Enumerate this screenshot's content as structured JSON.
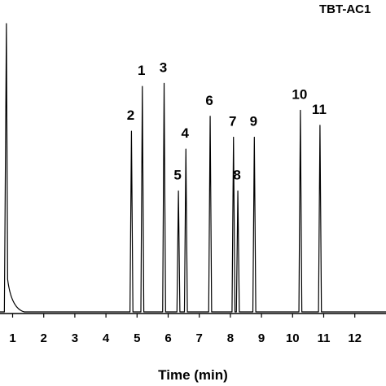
{
  "chart_data": {
    "type": "line",
    "title": "TBT-AC1",
    "xlabel": "Time (min)",
    "ylabel": "",
    "xlim": [
      0,
      12
    ],
    "ylim": [
      0,
      100
    ],
    "grid": false,
    "x_ticks": [
      "1",
      "2",
      "3",
      "4",
      "5",
      "6",
      "7",
      "8",
      "9",
      "10",
      "11",
      "12"
    ],
    "line_color": "#000000",
    "solvent_peak": {
      "x": 0.8,
      "y": 97
    },
    "peaks": [
      {
        "label": "2",
        "x": 4.82,
        "y": 61
      },
      {
        "label": "1",
        "x": 5.17,
        "y": 76
      },
      {
        "label": "3",
        "x": 5.87,
        "y": 77
      },
      {
        "label": "5",
        "x": 6.33,
        "y": 41
      },
      {
        "label": "4",
        "x": 6.57,
        "y": 55
      },
      {
        "label": "6",
        "x": 7.35,
        "y": 66
      },
      {
        "label": "7",
        "x": 8.1,
        "y": 59
      },
      {
        "label": "8",
        "x": 8.24,
        "y": 41
      },
      {
        "label": "9",
        "x": 8.77,
        "y": 59
      },
      {
        "label": "10",
        "x": 10.25,
        "y": 68
      },
      {
        "label": "11",
        "x": 10.88,
        "y": 63
      }
    ]
  }
}
